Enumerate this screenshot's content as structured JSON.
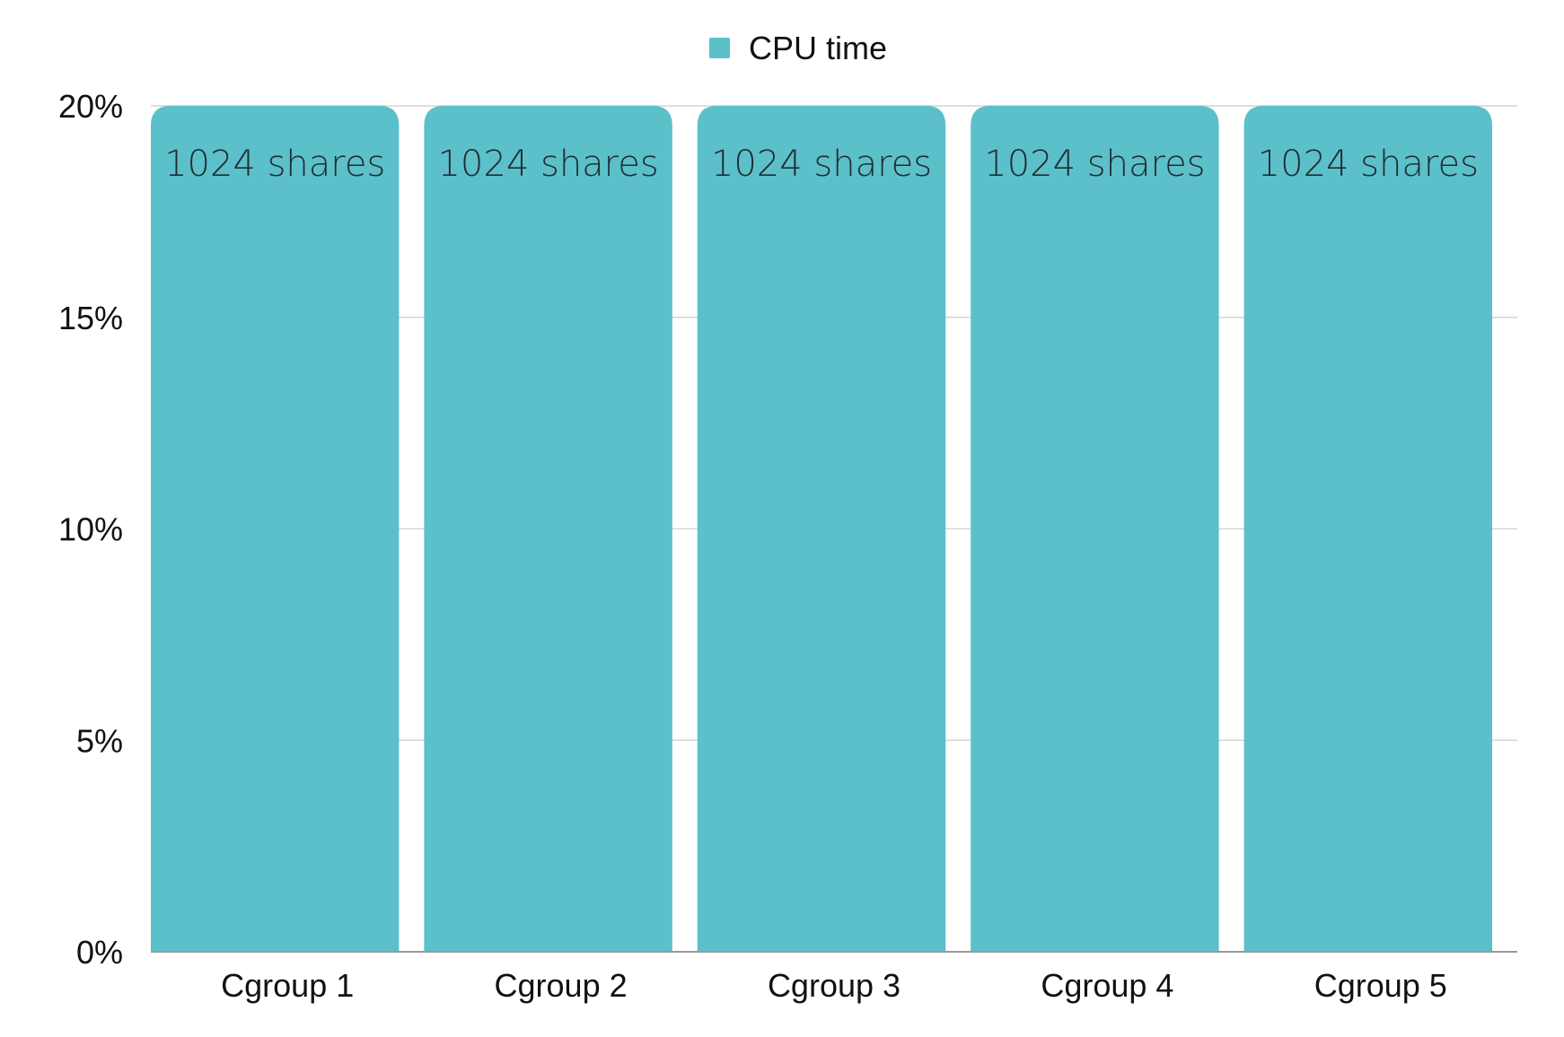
{
  "chart_data": {
    "type": "bar",
    "categories": [
      "Cgroup 1",
      "Cgroup 2",
      "Cgroup 3",
      "Cgroup 4",
      "Cgroup 5"
    ],
    "series": [
      {
        "name": "CPU time",
        "color": "#5bc0c9",
        "values": [
          20,
          20,
          20,
          20,
          20
        ],
        "data_labels": [
          "1024 shares",
          "1024 shares",
          "1024 shares",
          "1024 shares",
          "1024 shares"
        ]
      }
    ],
    "title": "",
    "xlabel": "",
    "ylabel": "",
    "ylim": [
      0,
      20
    ],
    "yticks": [
      0,
      5,
      10,
      15,
      20
    ],
    "ytick_labels": [
      "0%",
      "5%",
      "10%",
      "15%",
      "20%"
    ],
    "grid": true,
    "legend_position": "top-center"
  }
}
